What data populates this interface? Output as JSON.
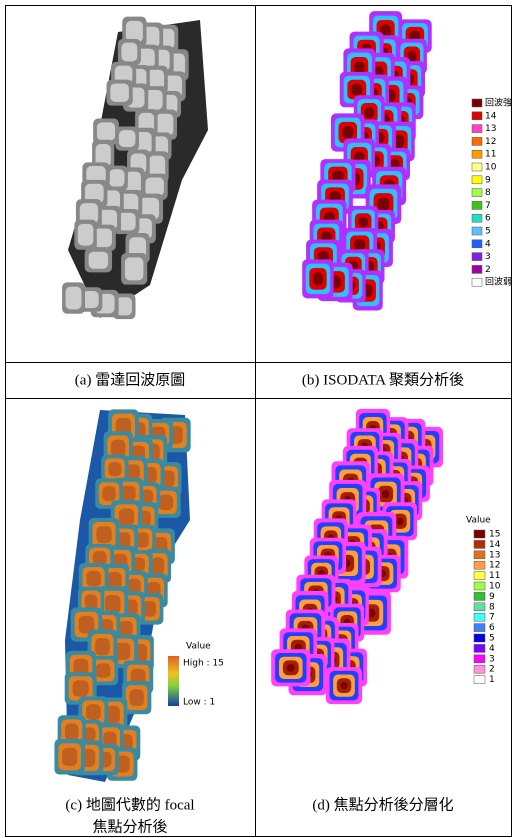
{
  "panels": [
    {
      "caption": "(a)  雷達回波原圖"
    },
    {
      "caption": "(b) ISODATA 聚類分析後",
      "legend": {
        "items": [
          {
            "label": "回波強",
            "color": "#7a0000"
          },
          {
            "label": "14",
            "color": "#e00000"
          },
          {
            "label": "13",
            "color": "#ff40c0"
          },
          {
            "label": "12",
            "color": "#ff6a00"
          },
          {
            "label": "11",
            "color": "#ff9a00"
          },
          {
            "label": "10",
            "color": "#ffff80"
          },
          {
            "label": "9",
            "color": "#ffff00"
          },
          {
            "label": "8",
            "color": "#a0ff40"
          },
          {
            "label": "7",
            "color": "#40c020"
          },
          {
            "label": "6",
            "color": "#20e0c0"
          },
          {
            "label": "5",
            "color": "#60c0ff"
          },
          {
            "label": "4",
            "color": "#2060ff"
          },
          {
            "label": "3",
            "color": "#8020e0"
          },
          {
            "label": "2",
            "color": "#a000a0"
          },
          {
            "label": "回波弱",
            "color": "#ffffff"
          }
        ]
      }
    },
    {
      "caption_lines": [
        "(c)  地圖代數的 focal",
        "焦點分析後"
      ],
      "legend": {
        "title": "Value",
        "high": "High : 15",
        "low": "Low : 1"
      }
    },
    {
      "caption": "(d)  焦點分析後分層化",
      "legend": {
        "title": "Value",
        "items": [
          {
            "label": "15",
            "color": "#7a0000"
          },
          {
            "label": "14",
            "color": "#b03000"
          },
          {
            "label": "13",
            "color": "#e07020"
          },
          {
            "label": "12",
            "color": "#ffa040"
          },
          {
            "label": "11",
            "color": "#ffff40"
          },
          {
            "label": "10",
            "color": "#a0ff40"
          },
          {
            "label": "9",
            "color": "#30c030"
          },
          {
            "label": "8",
            "color": "#60e0a0"
          },
          {
            "label": "7",
            "color": "#40ffff"
          },
          {
            "label": "6",
            "color": "#4080ff"
          },
          {
            "label": "5",
            "color": "#0000e0"
          },
          {
            "label": "4",
            "color": "#8000ff"
          },
          {
            "label": "3",
            "color": "#ff00ff"
          },
          {
            "label": "2",
            "color": "#ff90e0"
          },
          {
            "label": "1",
            "color": "#ffffff"
          }
        ]
      }
    }
  ]
}
